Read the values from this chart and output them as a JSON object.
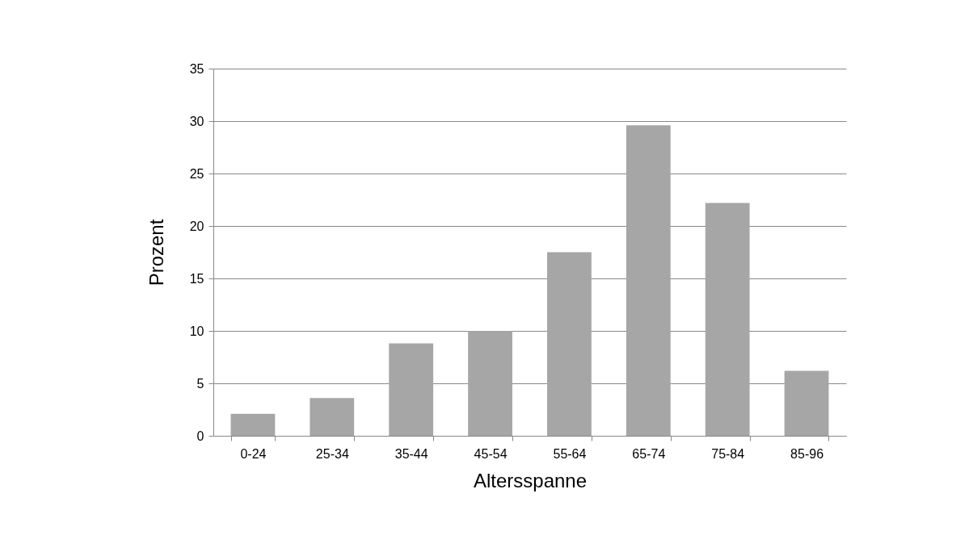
{
  "chart_data": {
    "type": "bar",
    "xlabel": "Altersspanne",
    "ylabel": "Prozent",
    "categories": [
      "0-24",
      "25-34",
      "35-44",
      "45-54",
      "55-64",
      "65-74",
      "75-84",
      "85-96"
    ],
    "values": [
      2.1,
      3.6,
      8.8,
      10.0,
      17.5,
      29.6,
      22.2,
      6.2
    ],
    "color": "#a6a6a6",
    "ylim": [
      0,
      35
    ],
    "yticks": [
      0,
      5,
      10,
      15,
      20,
      25,
      30,
      35
    ],
    "grid": "y"
  }
}
